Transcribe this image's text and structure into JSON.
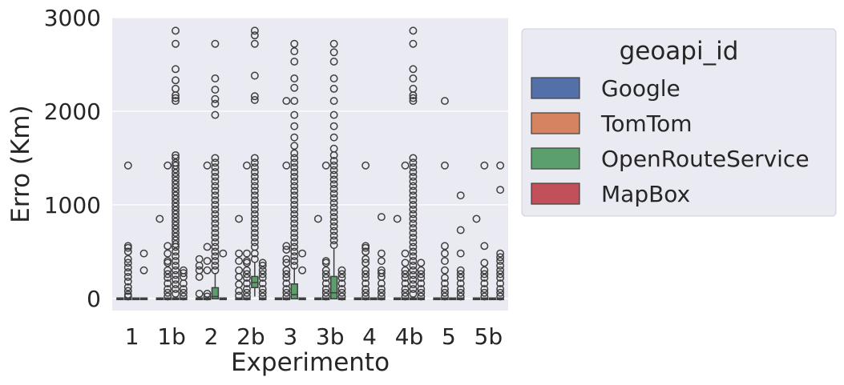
{
  "chart_data": {
    "type": "box",
    "xlabel": "Experimento",
    "ylabel": "Erro (Km)",
    "categories": [
      "1",
      "1b",
      "2",
      "2b",
      "3",
      "3b",
      "4",
      "4b",
      "5",
      "5b"
    ],
    "ylim": [
      -130,
      3000
    ],
    "yticks": [
      0,
      1000,
      2000,
      3000
    ],
    "grid": true,
    "legend": {
      "title": "geoapi_id",
      "placement": "outside-right",
      "entries": [
        "Google",
        "TomTom",
        "OpenRouteService",
        "MapBox"
      ]
    },
    "colors": {
      "Google": "#5470a8",
      "TomTom": "#d5845f",
      "OpenRouteService": "#5b9f6c",
      "MapBox": "#c2505b",
      "background": "#eaeaf2",
      "grid": "#ffffff",
      "outline": "#3f3f3f"
    },
    "series": [
      {
        "name": "Google",
        "boxes": [
          {
            "q1": 0,
            "median": 0,
            "q3": 0,
            "whisker_low": 0,
            "whisker_high": 0,
            "outliers": []
          },
          {
            "q1": 0,
            "median": 0,
            "q3": 0,
            "whisker_low": 0,
            "whisker_high": 0,
            "outliers": [
              850
            ]
          },
          {
            "q1": 0,
            "median": 0,
            "q3": 0,
            "whisker_low": 0,
            "whisker_high": 0,
            "outliers": [
              50,
              230,
              300,
              350,
              420
            ]
          },
          {
            "q1": 0,
            "median": 0,
            "q3": 0,
            "whisker_low": 0,
            "whisker_high": 0,
            "outliers": [
              30,
              80,
              150,
              230,
              300,
              400,
              480,
              850
            ]
          },
          {
            "q1": 0,
            "median": 0,
            "q3": 0,
            "whisker_low": 0,
            "whisker_high": 0,
            "outliers": []
          },
          {
            "q1": 0,
            "median": 0,
            "q3": 0,
            "whisker_low": 0,
            "whisker_high": 0,
            "outliers": [
              850
            ]
          },
          {
            "q1": 0,
            "median": 0,
            "q3": 0,
            "whisker_low": 0,
            "whisker_high": 0,
            "outliers": []
          },
          {
            "q1": 0,
            "median": 0,
            "q3": 0,
            "whisker_low": 0,
            "whisker_high": 0,
            "outliers": [
              850
            ]
          },
          {
            "q1": 0,
            "median": 0,
            "q3": 0,
            "whisker_low": 0,
            "whisker_high": 0,
            "outliers": []
          },
          {
            "q1": 0,
            "median": 0,
            "q3": 0,
            "whisker_low": 0,
            "whisker_high": 0,
            "outliers": [
              850
            ]
          }
        ]
      },
      {
        "name": "TomTom",
        "boxes": [
          {
            "q1": 0,
            "median": 0,
            "q3": 0,
            "whisker_low": 0,
            "whisker_high": 0,
            "outliers": [
              20,
              40,
              80,
              120,
              180,
              230,
              280,
              330,
              380,
              420,
              500,
              540,
              560,
              1420
            ]
          },
          {
            "q1": 0,
            "median": 0,
            "q3": 0,
            "whisker_low": 0,
            "whisker_high": 0,
            "outliers": [
              20,
              60,
              100,
              160,
              220,
              260,
              300,
              380,
              400,
              480,
              560,
              1420
            ]
          },
          {
            "q1": 0,
            "median": 0,
            "q3": 0,
            "whisker_low": 0,
            "whisker_high": 0,
            "outliers": [
              20,
              50,
              300,
              400,
              550,
              1420
            ]
          },
          {
            "q1": 0,
            "median": 0,
            "q3": 0,
            "whisker_low": 0,
            "whisker_high": 0,
            "outliers": [
              20,
              60,
              100,
              160,
              220,
              260,
              300,
              380,
              400,
              480,
              1420
            ]
          },
          {
            "q1": 0,
            "median": 0,
            "q3": 0,
            "whisker_low": 0,
            "whisker_high": 0,
            "outliers": [
              20,
              60,
              100,
              160,
              220,
              260,
              300,
              380,
              420,
              520,
              560,
              1420,
              2110
            ]
          },
          {
            "q1": 0,
            "median": 0,
            "q3": 0,
            "whisker_low": 0,
            "whisker_high": 0,
            "outliers": [
              20,
              60,
              100,
              160,
              220,
              260,
              300,
              380,
              400,
              1420
            ]
          },
          {
            "q1": 0,
            "median": 0,
            "q3": 0,
            "whisker_low": 0,
            "whisker_high": 0,
            "outliers": [
              20,
              60,
              100,
              160,
              220,
              260,
              300,
              380,
              420,
              500,
              540,
              560,
              1420
            ]
          },
          {
            "q1": 0,
            "median": 0,
            "q3": 0,
            "whisker_low": 0,
            "whisker_high": 0,
            "outliers": [
              20,
              60,
              100,
              160,
              220,
              260,
              300,
              380,
              480,
              1420
            ]
          },
          {
            "q1": 0,
            "median": 0,
            "q3": 0,
            "whisker_low": 0,
            "whisker_high": 0,
            "outliers": [
              20,
              60,
              100,
              160,
              220,
              300,
              400,
              480,
              560,
              1420,
              2110
            ]
          },
          {
            "q1": 0,
            "median": 0,
            "q3": 0,
            "whisker_low": 0,
            "whisker_high": 0,
            "outliers": [
              20,
              60,
              100,
              160,
              220,
              260,
              300,
              380,
              560,
              1420
            ]
          }
        ]
      },
      {
        "name": "OpenRouteService",
        "boxes": [
          {
            "q1": 0,
            "median": 0,
            "q3": 0,
            "whisker_low": 0,
            "whisker_high": 0,
            "outliers": []
          },
          {
            "q1": 0,
            "median": 0,
            "q3": 0,
            "whisker_low": 0,
            "whisker_high": 0,
            "outliers": [
              50,
              100,
              150,
              200,
              250,
              300,
              350,
              400,
              450,
              500,
              550,
              580,
              620,
              660,
              700,
              740,
              780,
              820,
              860,
              900,
              940,
              980,
              1020,
              1060,
              1100,
              1140,
              1180,
              1220,
              1260,
              1300,
              1340,
              1380,
              1420,
              1450,
              1500,
              1530,
              2110,
              2140,
              2170,
              2240,
              2330,
              2450,
              2720,
              2860
            ]
          },
          {
            "q1": 0,
            "median": 20,
            "q3": 110,
            "whisker_low": 0,
            "whisker_high": 270,
            "outliers": [
              300,
              350,
              400,
              450,
              500,
              550,
              600,
              650,
              700,
              750,
              800,
              850,
              900,
              950,
              1000,
              1050,
              1100,
              1150,
              1200,
              1250,
              1300,
              1350,
              1400,
              1450,
              1500,
              1960,
              2080,
              2130,
              2230,
              2350,
              2720
            ]
          },
          {
            "q1": 120,
            "median": 170,
            "q3": 230,
            "whisker_low": 20,
            "whisker_high": 380,
            "outliers": [
              420,
              480,
              550,
              600,
              650,
              700,
              750,
              800,
              850,
              900,
              950,
              1000,
              1050,
              1100,
              1150,
              1200,
              1250,
              1300,
              1350,
              1400,
              1450,
              1500,
              2120,
              2160,
              2380,
              2720,
              2810,
              2860
            ]
          },
          {
            "q1": 0,
            "median": 40,
            "q3": 150,
            "whisker_low": 0,
            "whisker_high": 330,
            "outliers": [
              350,
              400,
              450,
              500,
              550,
              600,
              650,
              700,
              750,
              800,
              850,
              900,
              950,
              1000,
              1050,
              1100,
              1150,
              1200,
              1250,
              1300,
              1350,
              1400,
              1450,
              1500,
              1550,
              1630,
              1720,
              1840,
              1960,
              2110,
              2250,
              2350,
              2530,
              2640,
              2720
            ]
          },
          {
            "q1": 0,
            "median": 60,
            "q3": 230,
            "whisker_low": 0,
            "whisker_high": 540,
            "outliers": [
              570,
              620,
              670,
              720,
              770,
              820,
              870,
              920,
              970,
              1020,
              1070,
              1120,
              1170,
              1220,
              1270,
              1320,
              1370,
              1420,
              1470,
              1530,
              1600,
              1720,
              1840,
              1960,
              2110,
              2240,
              2350,
              2530,
              2630,
              2720
            ]
          },
          {
            "q1": 0,
            "median": 0,
            "q3": 0,
            "whisker_low": 0,
            "whisker_high": 0,
            "outliers": []
          },
          {
            "q1": 0,
            "median": 0,
            "q3": 0,
            "whisker_low": 0,
            "whisker_high": 0,
            "outliers": [
              50,
              100,
              150,
              200,
              250,
              300,
              350,
              400,
              450,
              500,
              550,
              600,
              650,
              700,
              750,
              800,
              850,
              900,
              950,
              1000,
              1050,
              1100,
              1150,
              1200,
              1250,
              1300,
              1350,
              1400,
              1450,
              1500,
              2110,
              2140,
              2170,
              2240,
              2350,
              2450,
              2720,
              2860
            ]
          },
          {
            "q1": 0,
            "median": 0,
            "q3": 0,
            "whisker_low": 0,
            "whisker_high": 0,
            "outliers": []
          },
          {
            "q1": 0,
            "median": 0,
            "q3": 0,
            "whisker_low": 0,
            "whisker_high": 0,
            "outliers": []
          }
        ]
      },
      {
        "name": "MapBox",
        "boxes": [
          {
            "q1": 0,
            "median": 0,
            "q3": 0,
            "whisker_low": 0,
            "whisker_high": 0,
            "outliers": [
              300,
              480
            ]
          },
          {
            "q1": 0,
            "median": 0,
            "q3": 0,
            "whisker_low": 0,
            "whisker_high": 0,
            "outliers": [
              20,
              60,
              100,
              160,
              230,
              270,
              300
            ]
          },
          {
            "q1": 0,
            "median": 0,
            "q3": 0,
            "whisker_low": 0,
            "whisker_high": 0,
            "outliers": [
              480
            ]
          },
          {
            "q1": 0,
            "median": 0,
            "q3": 0,
            "whisker_low": 0,
            "whisker_high": 0,
            "outliers": [
              20,
              60,
              100,
              160,
              220,
              260,
              300,
              350,
              380
            ]
          },
          {
            "q1": 0,
            "median": 0,
            "q3": 0,
            "whisker_low": 0,
            "whisker_high": 0,
            "outliers": [
              300,
              480
            ]
          },
          {
            "q1": 0,
            "median": 0,
            "q3": 0,
            "whisker_low": 0,
            "whisker_high": 0,
            "outliers": [
              20,
              60,
              100,
              160,
              220,
              260,
              300
            ]
          },
          {
            "q1": 0,
            "median": 0,
            "q3": 0,
            "whisker_low": 0,
            "whisker_high": 0,
            "outliers": [
              20,
              60,
              100,
              160,
              230,
              270,
              300,
              400,
              480,
              870
            ]
          },
          {
            "q1": 0,
            "median": 0,
            "q3": 0,
            "whisker_low": 0,
            "whisker_high": 0,
            "outliers": [
              20,
              60,
              100,
              160,
              220,
              260,
              300,
              380
            ]
          },
          {
            "q1": 0,
            "median": 0,
            "q3": 0,
            "whisker_low": 0,
            "whisker_high": 0,
            "outliers": [
              20,
              60,
              100,
              160,
              220,
              260,
              300,
              480,
              730,
              1100
            ]
          },
          {
            "q1": 0,
            "median": 0,
            "q3": 0,
            "whisker_low": 0,
            "whisker_high": 0,
            "outliers": [
              20,
              60,
              100,
              160,
              220,
              260,
              300,
              350,
              400,
              440,
              480,
              1160,
              1420
            ]
          }
        ]
      }
    ]
  }
}
